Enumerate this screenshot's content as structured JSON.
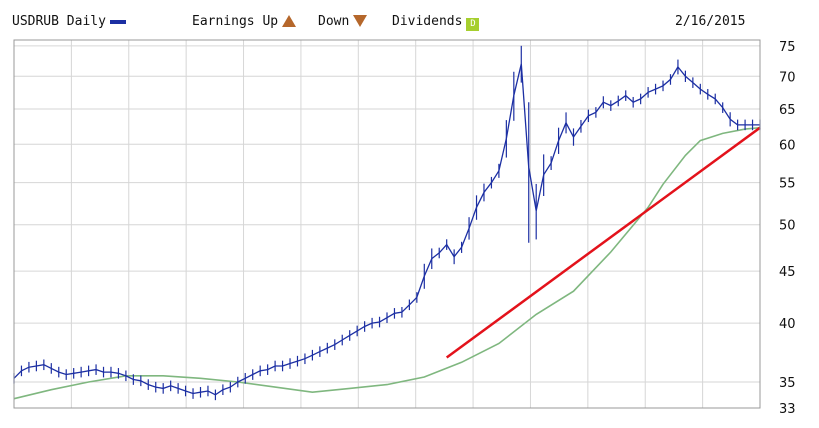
{
  "header": {
    "symbol_label": "USDRUB Daily",
    "earnings_up_label": "Earnings Up",
    "down_label": "Down",
    "dividends_label": "Dividends",
    "date": "2/16/2015",
    "earn_up_icon": "earnings-up-icon",
    "earn_down_icon": "earnings-down-icon",
    "dividend_icon": "dividend-icon",
    "dividend_letter": "D"
  },
  "colors": {
    "price": "#1c2fa3",
    "moving_average": "#7fb77f",
    "trendline": "#e3121b",
    "grid": "#d6d6d6"
  },
  "chart_data": {
    "type": "line",
    "title": "",
    "xlabel": "",
    "ylabel": "",
    "y_scale": "log",
    "ylim": [
      33,
      76
    ],
    "y_ticks": [
      75,
      70,
      65,
      60,
      55,
      50,
      45,
      40,
      35,
      33
    ],
    "grid": true,
    "legend_position": "top",
    "x_range": [
      0,
      100
    ],
    "series": [
      {
        "name": "USDRUB Daily",
        "style": "ohlc-bars",
        "x": [
          0,
          1,
          2,
          3,
          4,
          5,
          6,
          7,
          8,
          9,
          10,
          11,
          12,
          13,
          14,
          15,
          16,
          17,
          18,
          19,
          20,
          21,
          22,
          23,
          24,
          25,
          26,
          27,
          28,
          29,
          30,
          31,
          32,
          33,
          34,
          35,
          36,
          37,
          38,
          39,
          40,
          41,
          42,
          43,
          44,
          45,
          46,
          47,
          48,
          49,
          50,
          51,
          52,
          53,
          54,
          55,
          56,
          57,
          58,
          59,
          60,
          61,
          62,
          63,
          64,
          65,
          66,
          67,
          68,
          69,
          70,
          71,
          72,
          73,
          74,
          75,
          76,
          77,
          78,
          79,
          80,
          81,
          82,
          83,
          84,
          85,
          86,
          87,
          88,
          89,
          90,
          91,
          92,
          93,
          94,
          95,
          96,
          97,
          98,
          99,
          100
        ],
        "values": [
          35.3,
          35.9,
          36.2,
          36.3,
          36.4,
          36.1,
          35.8,
          35.6,
          35.7,
          35.8,
          35.9,
          36.0,
          35.8,
          35.8,
          35.7,
          35.5,
          35.2,
          35.1,
          34.8,
          34.6,
          34.5,
          34.7,
          34.5,
          34.3,
          34.1,
          34.2,
          34.3,
          34.0,
          34.4,
          34.6,
          35.0,
          35.3,
          35.6,
          35.9,
          36.0,
          36.3,
          36.3,
          36.5,
          36.7,
          36.9,
          37.2,
          37.5,
          37.8,
          38.1,
          38.5,
          38.9,
          39.3,
          39.7,
          40.0,
          40.1,
          40.5,
          40.9,
          41.0,
          41.7,
          42.4,
          44.5,
          46.3,
          46.9,
          47.8,
          46.5,
          47.5,
          49.6,
          52.0,
          53.8,
          55.0,
          56.5,
          60.8,
          67.0,
          72.0,
          57.0,
          51.6,
          56.0,
          57.5,
          60.5,
          63.0,
          61.0,
          62.5,
          64.0,
          64.5,
          66.0,
          65.5,
          66.2,
          67.0,
          66.0,
          66.5,
          67.5,
          68.0,
          68.5,
          69.5,
          71.5,
          70.0,
          69.0,
          68.0,
          67.2,
          66.5,
          65.2,
          63.5,
          62.7,
          62.7,
          62.7,
          62.7
        ]
      },
      {
        "name": "",
        "style": "line",
        "x": [
          0,
          5,
          10,
          15,
          20,
          25,
          30,
          35,
          40,
          45,
          50,
          55,
          60,
          65,
          70,
          75,
          80,
          85,
          87,
          90,
          92,
          95,
          98,
          100
        ],
        "values": [
          33.7,
          34.4,
          35.0,
          35.5,
          35.5,
          35.3,
          35.0,
          34.6,
          34.2,
          34.5,
          34.8,
          35.4,
          36.6,
          38.2,
          40.8,
          43.0,
          47.0,
          52.0,
          54.8,
          58.5,
          60.5,
          61.5,
          62.1,
          62.3
        ]
      },
      {
        "name": "",
        "style": "trendline",
        "x": [
          58,
          100
        ],
        "values": [
          37.0,
          62.3
        ]
      }
    ]
  }
}
